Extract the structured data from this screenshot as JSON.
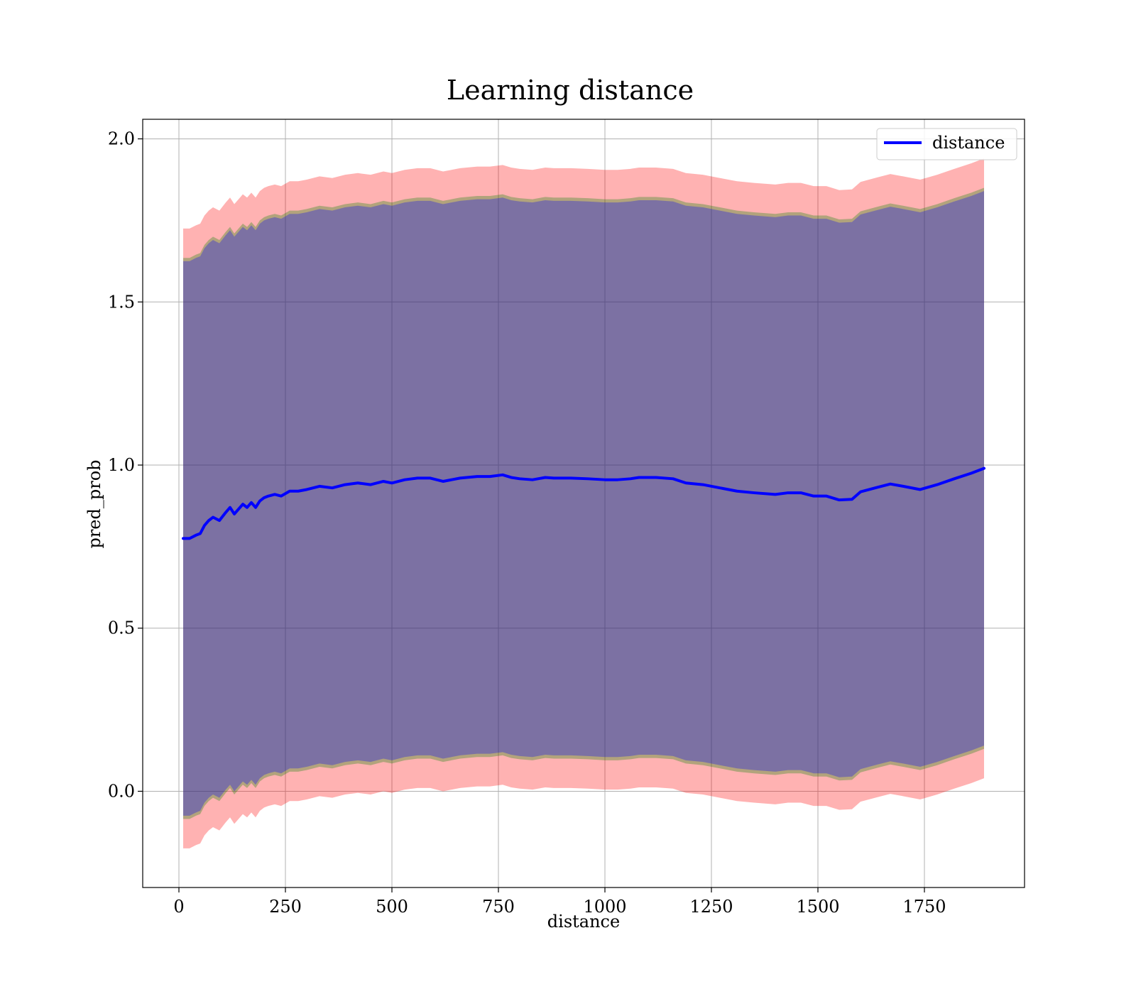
{
  "chart_data": {
    "type": "line",
    "title": "Learning distance",
    "xlabel": "distance",
    "ylabel": "pred_prob",
    "xlim": [
      -85,
      1985
    ],
    "ylim": [
      -0.295,
      2.06
    ],
    "grid": true,
    "legend_position": "top-right",
    "x_ticks": [
      {
        "value": 0,
        "label": "0"
      },
      {
        "value": 250,
        "label": "250"
      },
      {
        "value": 500,
        "label": "500"
      },
      {
        "value": 750,
        "label": "750"
      },
      {
        "value": 1000,
        "label": "1000"
      },
      {
        "value": 1250,
        "label": "1250"
      },
      {
        "value": 1500,
        "label": "1500"
      },
      {
        "value": 1750,
        "label": "1750"
      }
    ],
    "y_ticks": [
      {
        "value": 0.0,
        "label": "0.0"
      },
      {
        "value": 0.5,
        "label": "0.5"
      },
      {
        "value": 1.0,
        "label": "1.0"
      },
      {
        "value": 1.5,
        "label": "1.5"
      },
      {
        "value": 2.0,
        "label": "2.0"
      }
    ],
    "series": [
      {
        "name": "distance",
        "color": "#0000ff",
        "x": [
          10,
          25,
          40,
          50,
          60,
          70,
          80,
          95,
          110,
          120,
          130,
          140,
          150,
          160,
          170,
          180,
          190,
          200,
          210,
          225,
          240,
          260,
          280,
          300,
          330,
          360,
          390,
          420,
          450,
          480,
          500,
          530,
          560,
          590,
          620,
          660,
          700,
          730,
          760,
          780,
          800,
          830,
          860,
          880,
          920,
          960,
          1000,
          1030,
          1060,
          1080,
          1120,
          1160,
          1190,
          1230,
          1270,
          1310,
          1350,
          1400,
          1430,
          1460,
          1490,
          1520,
          1550,
          1580,
          1600,
          1640,
          1670,
          1700,
          1740,
          1780,
          1820,
          1860,
          1890
        ],
        "y": [
          0.775,
          0.775,
          0.785,
          0.79,
          0.815,
          0.83,
          0.84,
          0.83,
          0.855,
          0.87,
          0.85,
          0.865,
          0.88,
          0.87,
          0.885,
          0.87,
          0.89,
          0.9,
          0.905,
          0.91,
          0.905,
          0.92,
          0.92,
          0.925,
          0.935,
          0.93,
          0.94,
          0.945,
          0.94,
          0.95,
          0.945,
          0.955,
          0.96,
          0.96,
          0.95,
          0.96,
          0.965,
          0.965,
          0.97,
          0.962,
          0.958,
          0.955,
          0.962,
          0.96,
          0.96,
          0.958,
          0.955,
          0.955,
          0.958,
          0.962,
          0.962,
          0.958,
          0.945,
          0.94,
          0.93,
          0.92,
          0.915,
          0.91,
          0.915,
          0.915,
          0.905,
          0.905,
          0.893,
          0.895,
          0.918,
          0.932,
          0.942,
          0.935,
          0.925,
          0.94,
          0.958,
          0.975,
          0.99
        ]
      }
    ],
    "bands": [
      {
        "color": "#ff0000",
        "opacity": 0.3,
        "half_width": 0.95
      },
      {
        "color": "#008000",
        "opacity": 0.3,
        "half_width": 0.86
      },
      {
        "color": "#0000ff",
        "opacity": 0.3,
        "half_width": 0.85
      }
    ]
  }
}
